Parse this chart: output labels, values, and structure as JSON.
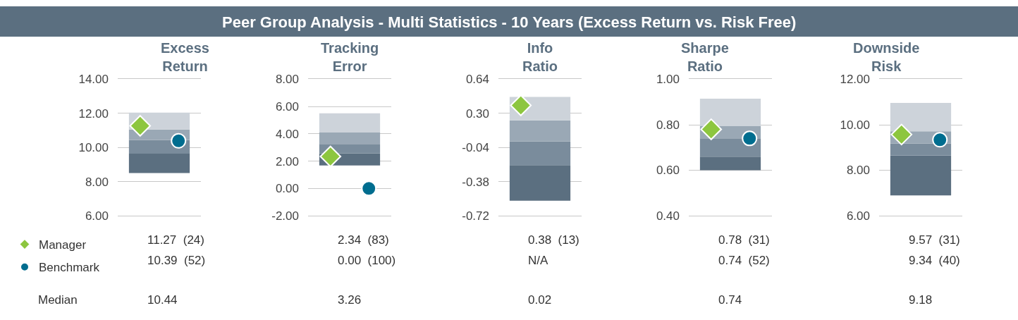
{
  "chart_data": [
    {
      "type": "other",
      "title": "Peer Group Analysis - Multi Statistics - 10 Years (Excess Return vs. Risk Free)",
      "annotations": [
        "Median"
      ]
    },
    {
      "type": "bar",
      "title": "Excess Return",
      "categories": [
        null
      ],
      "ylim": [
        6,
        14
      ],
      "yticks": [
        {
          "value": 6,
          "label": "6.00"
        },
        {
          "value": 8,
          "label": "8.00"
        },
        {
          "value": 10,
          "label": "10.00"
        },
        {
          "value": 12,
          "label": "12.00"
        },
        {
          "value": 14,
          "label": "14.00"
        }
      ],
      "grid": "y",
      "legend": "bottom left",
      "annotations": [
        "11.27  (24)",
        "10.39  (52)",
        "10.44"
      ],
      "series": [
        {
          "color": "#5b6f80",
          "base": [
            8.5
          ],
          "values": [
            1.14
          ]
        },
        {
          "color": "#7a8c9c",
          "base": [
            9.64
          ],
          "values": [
            0.8
          ]
        },
        {
          "color": "#9aa8b5",
          "base": [
            10.44
          ],
          "values": [
            0.61
          ]
        },
        {
          "color": "#cdd3da",
          "base": [
            11.05
          ],
          "values": [
            1.0
          ]
        },
        {
          "type": "scatter",
          "name": "Manager",
          "marker": "diamond",
          "color": "#8dc63f",
          "values": [
            11.27
          ]
        },
        {
          "type": "scatter",
          "name": "Benchmark",
          "marker": "circle",
          "color": "#006d8f",
          "values": [
            10.39
          ]
        }
      ]
    },
    {
      "type": "bar",
      "title": "Tracking Error",
      "categories": [
        null
      ],
      "ylim": [
        -2,
        8
      ],
      "yticks": [
        {
          "value": -2,
          "label": "-2.00"
        },
        {
          "value": 0,
          "label": "0.00"
        },
        {
          "value": 2,
          "label": "2.00"
        },
        {
          "value": 4,
          "label": "4.00"
        },
        {
          "value": 6,
          "label": "6.00"
        },
        {
          "value": 8,
          "label": "8.00"
        }
      ],
      "grid": "y",
      "annotations": [
        "2.34  (83)",
        "0.00  (100)",
        "3.26"
      ],
      "series": [
        {
          "color": "#5b6f80",
          "base": [
            1.68
          ],
          "values": [
            0.88
          ]
        },
        {
          "color": "#7a8c9c",
          "base": [
            2.56
          ],
          "values": [
            0.7
          ]
        },
        {
          "color": "#9aa8b5",
          "base": [
            3.26
          ],
          "values": [
            0.87
          ]
        },
        {
          "color": "#cdd3da",
          "base": [
            4.13
          ],
          "values": [
            1.37
          ]
        },
        {
          "type": "scatter",
          "marker": "diamond",
          "color": "#8dc63f",
          "values": [
            2.34
          ]
        },
        {
          "type": "scatter",
          "marker": "circle",
          "color": "#006d8f",
          "values": [
            0.0
          ]
        }
      ]
    },
    {
      "type": "bar",
      "title": "Info Ratio",
      "categories": [
        null
      ],
      "ylim": [
        -0.72,
        0.64
      ],
      "yticks": [
        {
          "value": -0.72,
          "label": "-0.72"
        },
        {
          "value": -0.38,
          "label": "-0.38"
        },
        {
          "value": -0.04,
          "label": "-0.04"
        },
        {
          "value": 0.3,
          "label": "0.30"
        },
        {
          "value": 0.64,
          "label": "0.64"
        }
      ],
      "grid": "y",
      "annotations": [
        "0.38  (13)",
        "N/A",
        "0.02"
      ],
      "series": [
        {
          "color": "#5b6f80",
          "base": [
            -0.57
          ],
          "values": [
            0.355
          ]
        },
        {
          "color": "#7a8c9c",
          "base": [
            -0.215
          ],
          "values": [
            0.235
          ]
        },
        {
          "color": "#9aa8b5",
          "base": [
            0.02
          ],
          "values": [
            0.21
          ]
        },
        {
          "color": "#cdd3da",
          "base": [
            0.23
          ],
          "values": [
            0.235
          ]
        },
        {
          "type": "scatter",
          "marker": "diamond",
          "color": "#8dc63f",
          "values": [
            0.38
          ]
        },
        {
          "type": "scatter",
          "marker": "circle",
          "color": "#006d8f",
          "values": [
            null
          ]
        }
      ]
    },
    {
      "type": "bar",
      "title": "Sharpe Ratio",
      "categories": [
        null
      ],
      "ylim": [
        0.4,
        1.0
      ],
      "yticks": [
        {
          "value": 0.4,
          "label": "0.40"
        },
        {
          "value": 0.6,
          "label": "0.60"
        },
        {
          "value": 0.8,
          "label": "0.80"
        },
        {
          "value": 1.0,
          "label": "1.00"
        }
      ],
      "grid": "y",
      "annotations": [
        "0.78  (31)",
        "0.74  (52)",
        "0.74"
      ],
      "series": [
        {
          "color": "#5b6f80",
          "base": [
            0.6
          ],
          "values": [
            0.06
          ]
        },
        {
          "color": "#7a8c9c",
          "base": [
            0.66
          ],
          "values": [
            0.08
          ]
        },
        {
          "color": "#9aa8b5",
          "base": [
            0.74
          ],
          "values": [
            0.055
          ]
        },
        {
          "color": "#cdd3da",
          "base": [
            0.795
          ],
          "values": [
            0.12
          ]
        },
        {
          "type": "scatter",
          "marker": "diamond",
          "color": "#8dc63f",
          "values": [
            0.78
          ]
        },
        {
          "type": "scatter",
          "marker": "circle",
          "color": "#006d8f",
          "values": [
            0.74
          ]
        }
      ]
    },
    {
      "type": "bar",
      "title": "Downside Risk",
      "categories": [
        null
      ],
      "ylim": [
        6,
        12
      ],
      "yticks": [
        {
          "value": 6,
          "label": "6.00"
        },
        {
          "value": 8,
          "label": "8.00"
        },
        {
          "value": 10,
          "label": "10.00"
        },
        {
          "value": 12,
          "label": "12.00"
        }
      ],
      "grid": "y",
      "annotations": [
        "9.57  (31)",
        "9.34  (40)",
        "9.18"
      ],
      "series": [
        {
          "color": "#5b6f80",
          "base": [
            6.89
          ],
          "values": [
            1.75
          ]
        },
        {
          "color": "#7a8c9c",
          "base": [
            8.64
          ],
          "values": [
            0.54
          ]
        },
        {
          "color": "#9aa8b5",
          "base": [
            9.18
          ],
          "values": [
            0.53
          ]
        },
        {
          "color": "#cdd3da",
          "base": [
            9.71
          ],
          "values": [
            1.25
          ]
        },
        {
          "type": "scatter",
          "marker": "diamond",
          "color": "#8dc63f",
          "values": [
            9.57
          ]
        },
        {
          "type": "scatter",
          "marker": "circle",
          "color": "#006d8f",
          "values": [
            9.34
          ]
        }
      ]
    }
  ]
}
